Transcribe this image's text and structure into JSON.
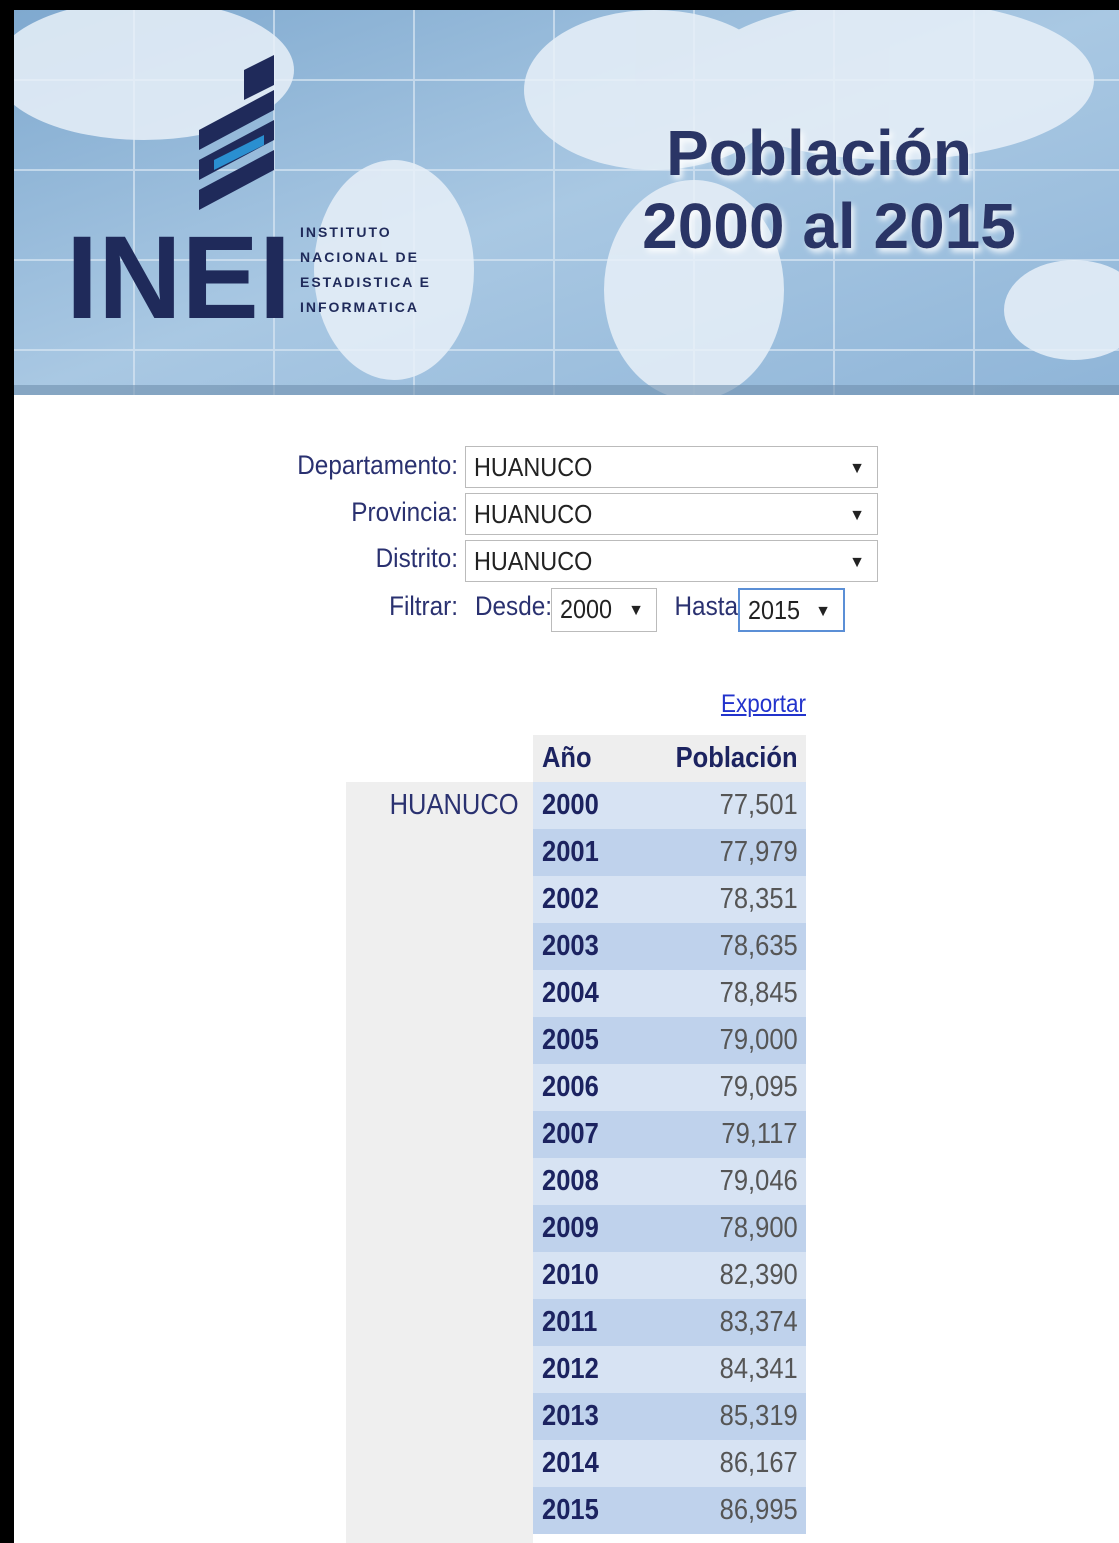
{
  "header": {
    "title_line1": "Población",
    "title_line2": "2000 al 2015",
    "logo": {
      "acronym": "INEI",
      "lines": [
        "INSTITUTO",
        "NACIONAL DE",
        "ESTADISTICA E",
        "INFORMATICA"
      ]
    }
  },
  "form": {
    "departamento": {
      "label": "Departamento:",
      "value": "HUANUCO"
    },
    "provincia": {
      "label": "Provincia:",
      "value": "HUANUCO"
    },
    "distrito": {
      "label": "Distrito:",
      "value": "HUANUCO"
    },
    "filtrar": {
      "label": "Filtrar:",
      "desde_label": "Desde:",
      "desde_value": "2000",
      "hasta_label": "Hasta",
      "hasta_value": "2015"
    }
  },
  "export_link": "Exportar",
  "table": {
    "headers": [
      "Año",
      "Población"
    ],
    "place": "HUANUCO",
    "rows": [
      [
        "2000",
        "77,501"
      ],
      [
        "2001",
        "77,979"
      ],
      [
        "2002",
        "78,351"
      ],
      [
        "2003",
        "78,635"
      ],
      [
        "2004",
        "78,845"
      ],
      [
        "2005",
        "79,000"
      ],
      [
        "2006",
        "79,095"
      ],
      [
        "2007",
        "79,117"
      ],
      [
        "2008",
        "79,046"
      ],
      [
        "2009",
        "78,900"
      ],
      [
        "2010",
        "82,390"
      ],
      [
        "2011",
        "83,374"
      ],
      [
        "2012",
        "84,341"
      ],
      [
        "2013",
        "85,319"
      ],
      [
        "2014",
        "86,167"
      ],
      [
        "2015",
        "86,995"
      ]
    ]
  }
}
